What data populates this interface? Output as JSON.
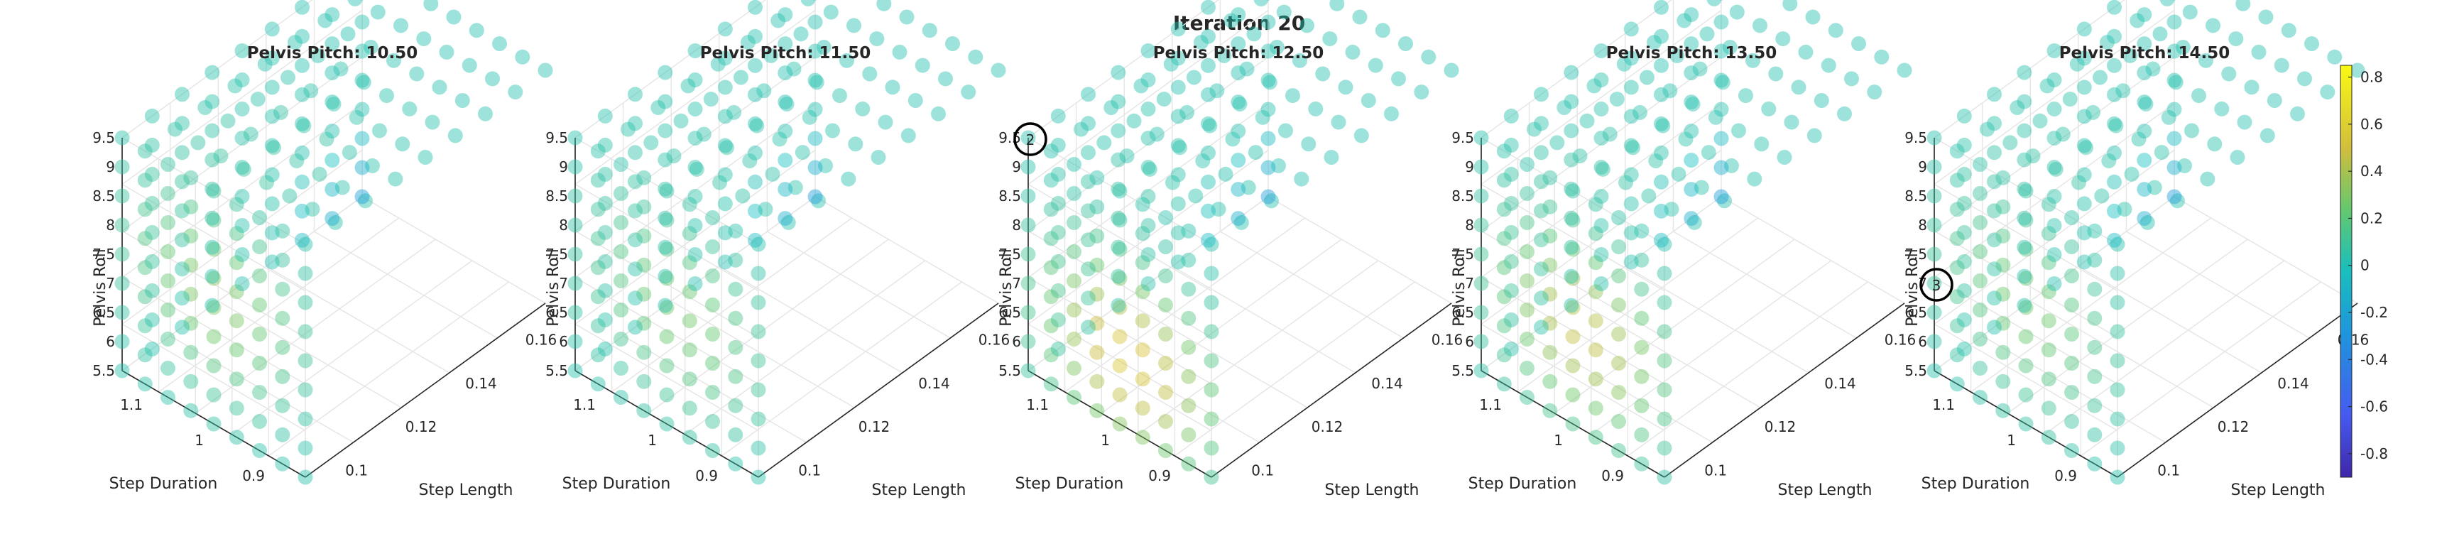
{
  "figure_title": "Iteration 20",
  "chart_data": [
    {
      "type": "scatter",
      "title": "Pelvis Pitch: 10.50",
      "xlabel": "Step Length",
      "ylabel": "Step Duration",
      "zlabel": "Pelvis Roll",
      "x_ticks": [
        "0.1",
        "0.12",
        "0.14",
        "0.16"
      ],
      "y_ticks": [
        "0.9",
        "1",
        "1.1"
      ],
      "z_ticks": [
        "5.5",
        "6",
        "6.5",
        "7",
        "7.5",
        "8",
        "8.5",
        "9",
        "9.5"
      ],
      "xlim": [
        0.09,
        0.17
      ],
      "ylim": [
        0.85,
        1.15
      ],
      "zlim": [
        5.5,
        9.5
      ],
      "grid": true,
      "marker_labels": []
    },
    {
      "type": "scatter",
      "title": "Pelvis Pitch: 11.50",
      "xlabel": "Step Length",
      "ylabel": "Step Duration",
      "zlabel": "Pelvis Roll",
      "x_ticks": [
        "0.1",
        "0.12",
        "0.14",
        "0.16"
      ],
      "y_ticks": [
        "0.9",
        "1",
        "1.1"
      ],
      "z_ticks": [
        "5.5",
        "6",
        "6.5",
        "7",
        "7.5",
        "8",
        "8.5",
        "9",
        "9.5"
      ],
      "xlim": [
        0.09,
        0.17
      ],
      "ylim": [
        0.85,
        1.15
      ],
      "zlim": [
        5.5,
        9.5
      ],
      "grid": true,
      "marker_labels": []
    },
    {
      "type": "scatter",
      "title": "Pelvis Pitch: 12.50",
      "xlabel": "Step Length",
      "ylabel": "Step Duration",
      "zlabel": "Pelvis Roll",
      "x_ticks": [
        "0.1",
        "0.12",
        "0.14",
        "0.16"
      ],
      "y_ticks": [
        "0.9",
        "1",
        "1.1"
      ],
      "z_ticks": [
        "5.5",
        "6",
        "6.5",
        "7",
        "7.5",
        "8",
        "8.5",
        "9",
        "9.5"
      ],
      "xlim": [
        0.09,
        0.17
      ],
      "ylim": [
        0.85,
        1.15
      ],
      "zlim": [
        5.5,
        9.5
      ],
      "grid": true,
      "marker_labels": [
        {
          "text": "2",
          "x": 0.09,
          "y": 1.15,
          "z": 9.5
        }
      ]
    },
    {
      "type": "scatter",
      "title": "Pelvis Pitch: 13.50",
      "xlabel": "Step Length",
      "ylabel": "Step Duration",
      "zlabel": "Pelvis Roll",
      "x_ticks": [
        "0.1",
        "0.12",
        "0.14",
        "0.16"
      ],
      "y_ticks": [
        "0.9",
        "1",
        "1.1"
      ],
      "z_ticks": [
        "5.5",
        "6",
        "6.5",
        "7",
        "7.5",
        "8",
        "8.5",
        "9",
        "9.5"
      ],
      "xlim": [
        0.09,
        0.17
      ],
      "ylim": [
        0.85,
        1.15
      ],
      "zlim": [
        5.5,
        9.5
      ],
      "grid": true,
      "marker_labels": []
    },
    {
      "type": "scatter",
      "title": "Pelvis Pitch: 14.50",
      "xlabel": "Step Length",
      "ylabel": "Step Duration",
      "zlabel": "Pelvis Roll",
      "x_ticks": [
        "0.1",
        "0.12",
        "0.14",
        "0.16"
      ],
      "y_ticks": [
        "0.9",
        "1",
        "1.1"
      ],
      "z_ticks": [
        "5.5",
        "6",
        "6.5",
        "7",
        "7.5",
        "8",
        "8.5",
        "9",
        "9.5"
      ],
      "xlim": [
        0.09,
        0.17
      ],
      "ylim": [
        0.85,
        1.15
      ],
      "zlim": [
        5.5,
        9.5
      ],
      "grid": true,
      "marker_labels": [
        {
          "text": "3",
          "x": 0.09,
          "y": 1.15,
          "z": 7.0
        }
      ]
    }
  ],
  "colorbar": {
    "ticks": [
      "0.8",
      "0.6",
      "0.4",
      "0.2",
      "0",
      "-0.2",
      "-0.4",
      "-0.6",
      "-0.8"
    ],
    "range": [
      -0.9,
      0.85
    ],
    "colormap": "parula"
  }
}
